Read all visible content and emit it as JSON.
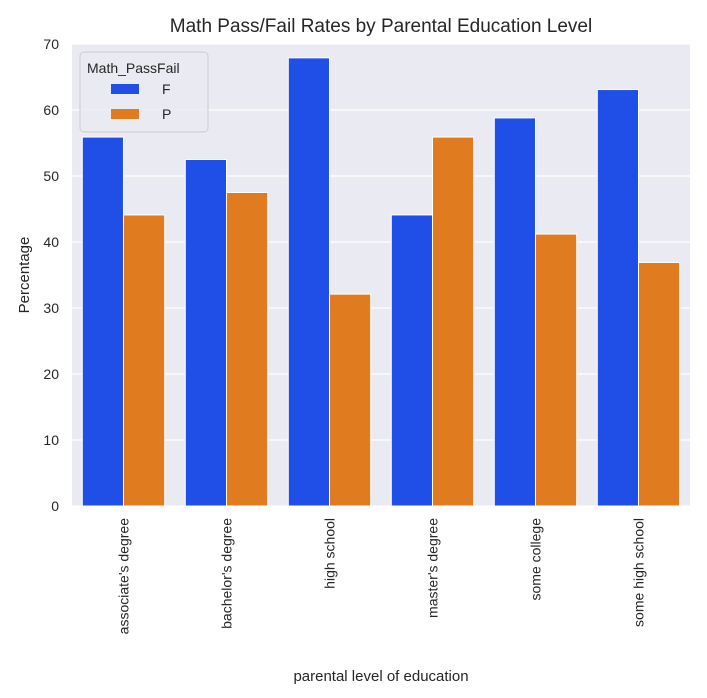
{
  "chart_data": {
    "type": "bar",
    "title": "Math Pass/Fail Rates by Parental Education Level",
    "xlabel": "parental level of education",
    "ylabel": "Percentage",
    "ylim": [
      0,
      70
    ],
    "yticks": [
      0,
      10,
      20,
      30,
      40,
      50,
      60,
      70
    ],
    "categories": [
      "associate's degree",
      "bachelor's degree",
      "high school",
      "master's degree",
      "some college",
      "some high school"
    ],
    "series": [
      {
        "name": "F",
        "color": "#1f4fe6",
        "values": [
          55.9,
          52.5,
          67.9,
          44.1,
          58.8,
          63.1
        ]
      },
      {
        "name": "P",
        "color": "#e07b1f",
        "values": [
          44.1,
          47.5,
          32.1,
          55.9,
          41.2,
          36.9
        ]
      }
    ],
    "legend": {
      "title": "Math_PassFail",
      "placement": "top-left"
    },
    "grid": true,
    "background": "#eaeaf2"
  }
}
